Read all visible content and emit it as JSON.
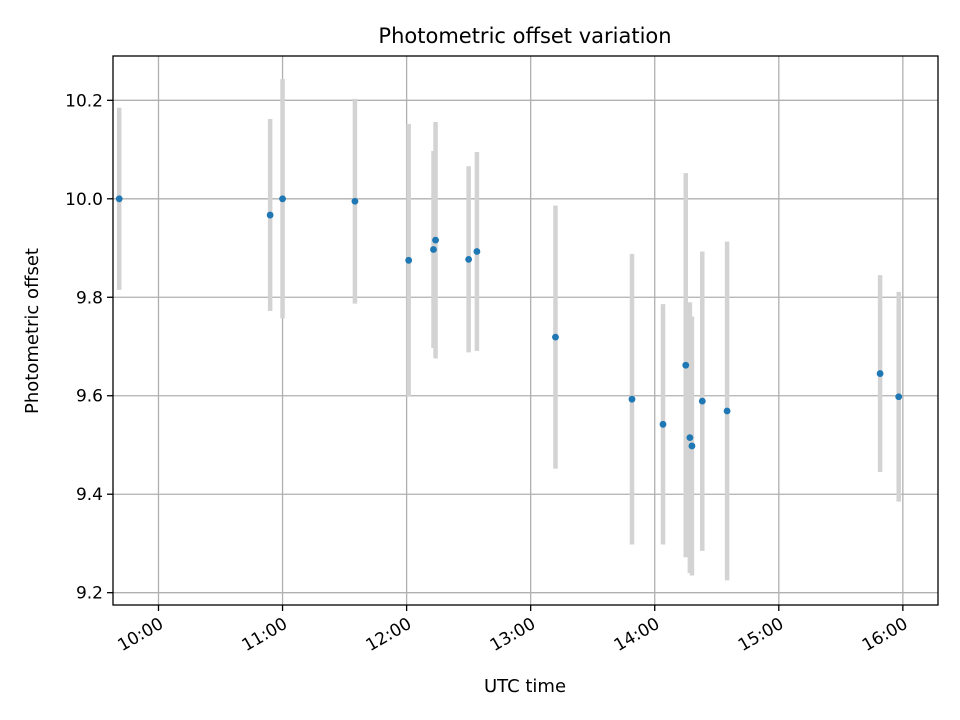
{
  "chart_data": {
    "type": "scatter",
    "title": "Photometric offset variation",
    "xlabel": "UTC time",
    "ylabel": "Photometric offset",
    "grid": true,
    "xlim": [
      "09:38",
      "16:17"
    ],
    "ylim": [
      9.175,
      10.29
    ],
    "x_ticks": [
      "10:00",
      "11:00",
      "12:00",
      "13:00",
      "14:00",
      "15:00",
      "16:00"
    ],
    "y_ticks": [
      9.2,
      9.4,
      9.6,
      9.8,
      10.0,
      10.2
    ],
    "y_tick_labels": [
      "9.2",
      "9.4",
      "9.6",
      "9.8",
      "10.0",
      "10.2"
    ],
    "marker_color": "#1f77b4",
    "errorbar_color": "#d3d3d3",
    "points": [
      {
        "x": "09:41",
        "y": 10.0,
        "yerr_low": 9.815,
        "yerr_high": 10.185
      },
      {
        "x": "10:54",
        "y": 9.967,
        "yerr_low": 9.772,
        "yerr_high": 10.162
      },
      {
        "x": "11:00",
        "y": 10.0,
        "yerr_low": 9.757,
        "yerr_high": 10.243
      },
      {
        "x": "11:35",
        "y": 9.995,
        "yerr_low": 9.787,
        "yerr_high": 10.203
      },
      {
        "x": "12:01",
        "y": 9.875,
        "yerr_low": 9.598,
        "yerr_high": 10.152
      },
      {
        "x": "12:13",
        "y": 9.897,
        "yerr_low": 9.697,
        "yerr_high": 10.097
      },
      {
        "x": "12:14",
        "y": 9.916,
        "yerr_low": 9.676,
        "yerr_high": 10.156
      },
      {
        "x": "12:30",
        "y": 9.877,
        "yerr_low": 9.688,
        "yerr_high": 10.066
      },
      {
        "x": "12:34",
        "y": 9.893,
        "yerr_low": 9.691,
        "yerr_high": 10.095
      },
      {
        "x": "13:12",
        "y": 9.719,
        "yerr_low": 9.452,
        "yerr_high": 9.986
      },
      {
        "x": "13:49",
        "y": 9.593,
        "yerr_low": 9.298,
        "yerr_high": 9.888
      },
      {
        "x": "14:04",
        "y": 9.542,
        "yerr_low": 9.298,
        "yerr_high": 9.786
      },
      {
        "x": "14:15",
        "y": 9.662,
        "yerr_low": 9.272,
        "yerr_high": 10.052
      },
      {
        "x": "14:17",
        "y": 9.515,
        "yerr_low": 9.24,
        "yerr_high": 9.79
      },
      {
        "x": "14:18",
        "y": 9.498,
        "yerr_low": 9.235,
        "yerr_high": 9.761
      },
      {
        "x": "14:23",
        "y": 9.589,
        "yerr_low": 9.285,
        "yerr_high": 9.893
      },
      {
        "x": "14:35",
        "y": 9.569,
        "yerr_low": 9.225,
        "yerr_high": 9.913
      },
      {
        "x": "15:49",
        "y": 9.645,
        "yerr_low": 9.445,
        "yerr_high": 9.845
      },
      {
        "x": "15:58",
        "y": 9.598,
        "yerr_low": 9.385,
        "yerr_high": 9.811
      }
    ]
  }
}
